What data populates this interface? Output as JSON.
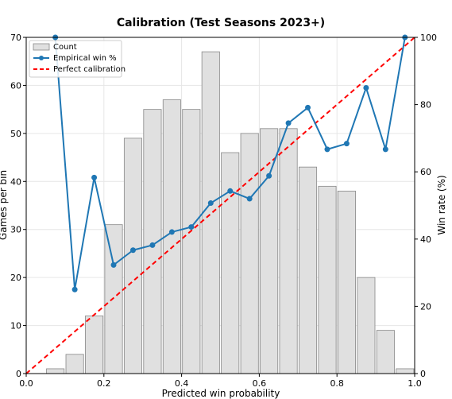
{
  "chart_data": {
    "type": "bar+line",
    "title": "Calibration (Test Seasons 2023+)",
    "xlabel": "Predicted win probability",
    "ylabel_left": "Games per bin",
    "ylabel_right": "Win rate (%)",
    "xlim": [
      0,
      1.0
    ],
    "ylim_left": [
      0,
      70
    ],
    "ylim_right": [
      0,
      100
    ],
    "x_ticks": [
      "0.0",
      "0.2",
      "0.4",
      "0.6",
      "0.8",
      "1.0"
    ],
    "y_left_ticks": [
      "0",
      "10",
      "20",
      "30",
      "40",
      "50",
      "60",
      "70"
    ],
    "y_right_ticks": [
      "0",
      "20",
      "40",
      "60",
      "80",
      "100"
    ],
    "grid": true,
    "legend_position": "top-left",
    "bin_width": 0.05,
    "count": {
      "name": "Count",
      "bin_centers": [
        0.075,
        0.125,
        0.175,
        0.225,
        0.275,
        0.325,
        0.375,
        0.425,
        0.475,
        0.525,
        0.575,
        0.625,
        0.675,
        0.725,
        0.775,
        0.825,
        0.875,
        0.925,
        0.975
      ],
      "values": [
        1,
        4,
        12,
        31,
        49,
        55,
        57,
        55,
        67,
        46,
        50,
        51,
        51,
        43,
        39,
        38,
        20,
        9,
        1
      ]
    },
    "empirical": {
      "name": "Empirical win %",
      "x": [
        0.075,
        0.125,
        0.175,
        0.225,
        0.275,
        0.325,
        0.375,
        0.425,
        0.475,
        0.525,
        0.575,
        0.625,
        0.675,
        0.725,
        0.775,
        0.825,
        0.875,
        0.925,
        0.975
      ],
      "y": [
        100,
        25.0,
        58.3,
        32.3,
        36.7,
        38.2,
        42.1,
        43.6,
        50.7,
        54.3,
        52.0,
        58.8,
        74.5,
        79.1,
        66.7,
        68.4,
        85.0,
        66.7,
        100
      ]
    },
    "perfect": {
      "name": "Perfect calibration",
      "x": [
        0,
        1
      ],
      "y": [
        0,
        100
      ]
    },
    "colors": {
      "bar_fill": "#e0e0e0",
      "bar_edge": "#888888",
      "line": "#1f77b4",
      "perfect": "#ff0000",
      "grid": "#e6e6e6"
    }
  }
}
